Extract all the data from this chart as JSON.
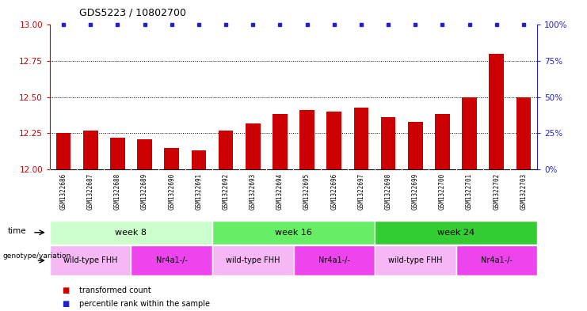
{
  "title": "GDS5223 / 10802700",
  "samples": [
    "GSM1322686",
    "GSM1322687",
    "GSM1322688",
    "GSM1322689",
    "GSM1322690",
    "GSM1322691",
    "GSM1322692",
    "GSM1322693",
    "GSM1322694",
    "GSM1322695",
    "GSM1322696",
    "GSM1322697",
    "GSM1322698",
    "GSM1322699",
    "GSM1322700",
    "GSM1322701",
    "GSM1322702",
    "GSM1322703"
  ],
  "transformed_counts": [
    12.25,
    12.27,
    12.22,
    12.21,
    12.15,
    12.13,
    12.27,
    12.32,
    12.385,
    12.41,
    12.4,
    12.43,
    12.36,
    12.33,
    12.385,
    12.5,
    12.8,
    12.5
  ],
  "bar_color": "#cc0000",
  "dot_color": "#2222cc",
  "ylim_left": [
    12.0,
    13.0
  ],
  "ylim_right": [
    0,
    100
  ],
  "yticks_left": [
    12.0,
    12.25,
    12.5,
    12.75,
    13.0
  ],
  "yticks_right": [
    0,
    25,
    50,
    75,
    100
  ],
  "grid_lines": [
    12.25,
    12.5,
    12.75
  ],
  "time_groups": [
    {
      "label": "week 8",
      "start": 0,
      "end": 6,
      "color": "#ccffcc"
    },
    {
      "label": "week 16",
      "start": 6,
      "end": 12,
      "color": "#66ee66"
    },
    {
      "label": "week 24",
      "start": 12,
      "end": 18,
      "color": "#33cc33"
    }
  ],
  "genotype_groups": [
    {
      "label": "wild-type FHH",
      "start": 0,
      "end": 3,
      "color": "#f5b8f5"
    },
    {
      "label": "Nr4a1-/-",
      "start": 3,
      "end": 6,
      "color": "#ee44ee"
    },
    {
      "label": "wild-type FHH",
      "start": 6,
      "end": 9,
      "color": "#f5b8f5"
    },
    {
      "label": "Nr4a1-/-",
      "start": 9,
      "end": 12,
      "color": "#ee44ee"
    },
    {
      "label": "wild-type FHH",
      "start": 12,
      "end": 15,
      "color": "#f5b8f5"
    },
    {
      "label": "Nr4a1-/-",
      "start": 15,
      "end": 18,
      "color": "#ee44ee"
    }
  ],
  "legend_items": [
    {
      "label": "transformed count",
      "color": "#cc0000"
    },
    {
      "label": "percentile rank within the sample",
      "color": "#2222cc"
    }
  ],
  "left_tick_color": "#cc0000",
  "right_tick_color": "#2222cc",
  "background_color": "#ffffff",
  "bar_width": 0.55,
  "sample_bg_color": "#d8d8d8",
  "sample_sep_color": "#bbbbbb"
}
